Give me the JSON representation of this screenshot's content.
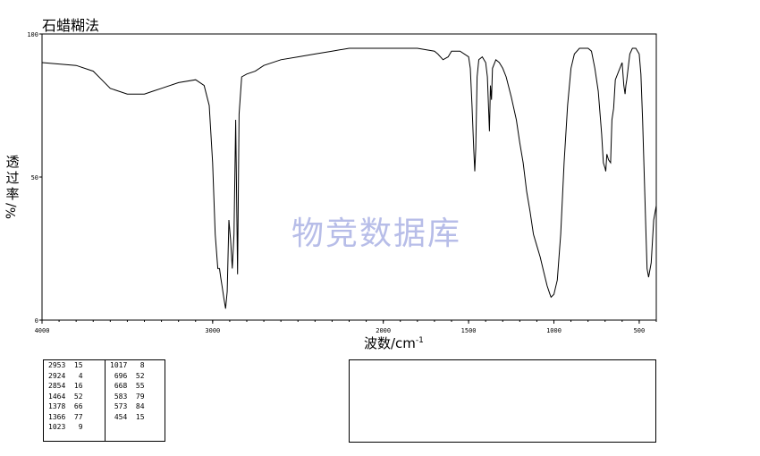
{
  "title": "石蜡糊法",
  "watermark": "物竞数据库",
  "chart_data": {
    "type": "line",
    "xlabel": "波数/cm",
    "xlabel_sup": "-1",
    "ylabel_chars": [
      "透",
      "过",
      "率"
    ],
    "ylabel_unit": "%/",
    "x_range": [
      4000,
      400
    ],
    "y_range": [
      0,
      100
    ],
    "x_ticks": [
      4000,
      3000,
      2000,
      1500,
      1000,
      500
    ],
    "x_tick_labels": [
      "4000",
      "3000",
      "2000",
      "1500",
      "1000",
      "500"
    ],
    "y_ticks": [
      0,
      50,
      100
    ],
    "y_tick_labels": [
      "0",
      "50",
      "100"
    ],
    "grid": false,
    "series": [
      {
        "x": [
          4000,
          3800,
          3700,
          3650,
          3600,
          3500,
          3400,
          3350,
          3300,
          3200,
          3100,
          3050,
          3020,
          3000,
          2985,
          2970,
          2960,
          2953,
          2945,
          2935,
          2924,
          2915,
          2905,
          2895,
          2885,
          2875,
          2865,
          2854,
          2845,
          2830,
          2800,
          2750,
          2700,
          2600,
          2500,
          2400,
          2300,
          2200,
          2100,
          2000,
          1900,
          1800,
          1700,
          1680,
          1650,
          1620,
          1600,
          1550,
          1500,
          1490,
          1480,
          1470,
          1464,
          1458,
          1450,
          1440,
          1420,
          1400,
          1390,
          1378,
          1372,
          1366,
          1360,
          1340,
          1320,
          1300,
          1280,
          1250,
          1220,
          1200,
          1180,
          1160,
          1140,
          1120,
          1100,
          1080,
          1060,
          1040,
          1023,
          1017,
          1000,
          980,
          960,
          940,
          920,
          900,
          880,
          850,
          800,
          780,
          760,
          740,
          720,
          710,
          700,
          696,
          690,
          680,
          668,
          660,
          650,
          640,
          620,
          600,
          590,
          583,
          578,
          573,
          565,
          555,
          540,
          520,
          500,
          490,
          480,
          470,
          460,
          454,
          445,
          430,
          415,
          400
        ],
        "y": [
          90,
          89,
          87,
          84,
          81,
          79,
          79,
          80,
          81,
          83,
          84,
          82,
          75,
          55,
          30,
          18,
          18,
          15,
          12,
          8,
          4,
          10,
          35,
          28,
          18,
          30,
          70,
          16,
          72,
          85,
          86,
          87,
          89,
          91,
          92,
          93,
          94,
          95,
          95,
          95,
          95,
          95,
          94,
          93,
          91,
          92,
          94,
          94,
          92,
          88,
          75,
          60,
          52,
          60,
          85,
          91,
          92,
          90,
          85,
          66,
          82,
          77,
          88,
          91,
          90,
          88,
          85,
          78,
          70,
          62,
          55,
          45,
          38,
          30,
          26,
          22,
          17,
          12,
          9,
          8,
          9,
          14,
          30,
          55,
          75,
          88,
          93,
          95,
          95,
          94,
          88,
          80,
          65,
          55,
          53,
          52,
          58,
          56,
          55,
          70,
          74,
          84,
          87,
          90,
          82,
          79,
          82,
          84,
          88,
          93,
          95,
          95,
          93,
          86,
          70,
          50,
          30,
          18,
          15,
          20,
          35,
          40
        ]
      }
    ],
    "peak_table": [
      [
        "2953",
        "15"
      ],
      [
        "2924",
        "4"
      ],
      [
        "2854",
        "16"
      ],
      [
        "1464",
        "52"
      ],
      [
        "1378",
        "66"
      ],
      [
        "1366",
        "77"
      ],
      [
        "1023",
        "9"
      ],
      [
        "1017",
        "8"
      ],
      [
        "696",
        "52"
      ],
      [
        "668",
        "55"
      ],
      [
        "583",
        "79"
      ],
      [
        "573",
        "84"
      ],
      [
        "454",
        "15"
      ]
    ]
  }
}
